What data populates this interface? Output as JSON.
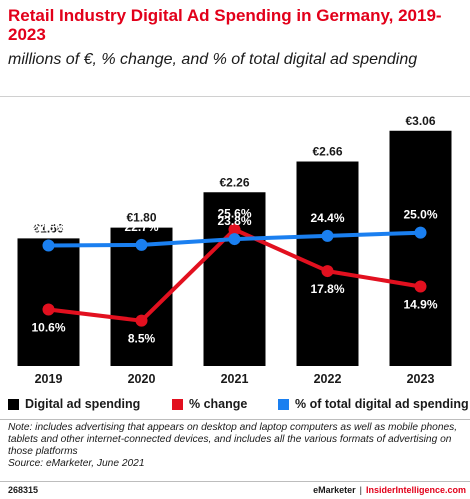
{
  "title": "Retail Industry Digital Ad Spending in Germany, 2019-2023",
  "subtitle": "millions of €, % change, and % of total digital ad spending",
  "chart_data": {
    "type": "bar",
    "categories": [
      "2019",
      "2020",
      "2021",
      "2022",
      "2023"
    ],
    "series": [
      {
        "name": "Digital ad spending",
        "kind": "bar",
        "color": "#000000",
        "values": [
          1.66,
          1.8,
          2.26,
          2.66,
          3.06
        ],
        "labels": [
          "€1.66",
          "€1.80",
          "€2.26",
          "€2.66",
          "€3.06"
        ]
      },
      {
        "name": "% change",
        "kind": "line",
        "color": "#e2101f",
        "values": [
          10.6,
          8.5,
          25.6,
          17.8,
          14.9
        ],
        "labels": [
          "10.6%",
          "8.5%",
          "25.6%",
          "17.8%",
          "14.9%"
        ]
      },
      {
        "name": "% of total digital ad spending",
        "kind": "line",
        "color": "#1a7ff0",
        "values": [
          22.6,
          22.7,
          23.8,
          24.4,
          25.0
        ],
        "labels": [
          "22.6%",
          "22.7%",
          "23.8%",
          "24.4%",
          "25.0%"
        ]
      }
    ],
    "bar_ylim": [
      0,
      3.2
    ],
    "pct_ylim": [
      0,
      45
    ],
    "legend_position": "bottom",
    "grid": false
  },
  "note": "Note: includes advertising that appears on desktop and laptop computers as well as mobile phones, tablets and other internet-connected devices, and includes all the various formats of advertising on those platforms",
  "source": "Source: eMarketer, June 2021",
  "footer": {
    "id": "268315",
    "brand_left": "eMarketer",
    "separator": "|",
    "brand_right": "InsiderIntelligence.com"
  }
}
